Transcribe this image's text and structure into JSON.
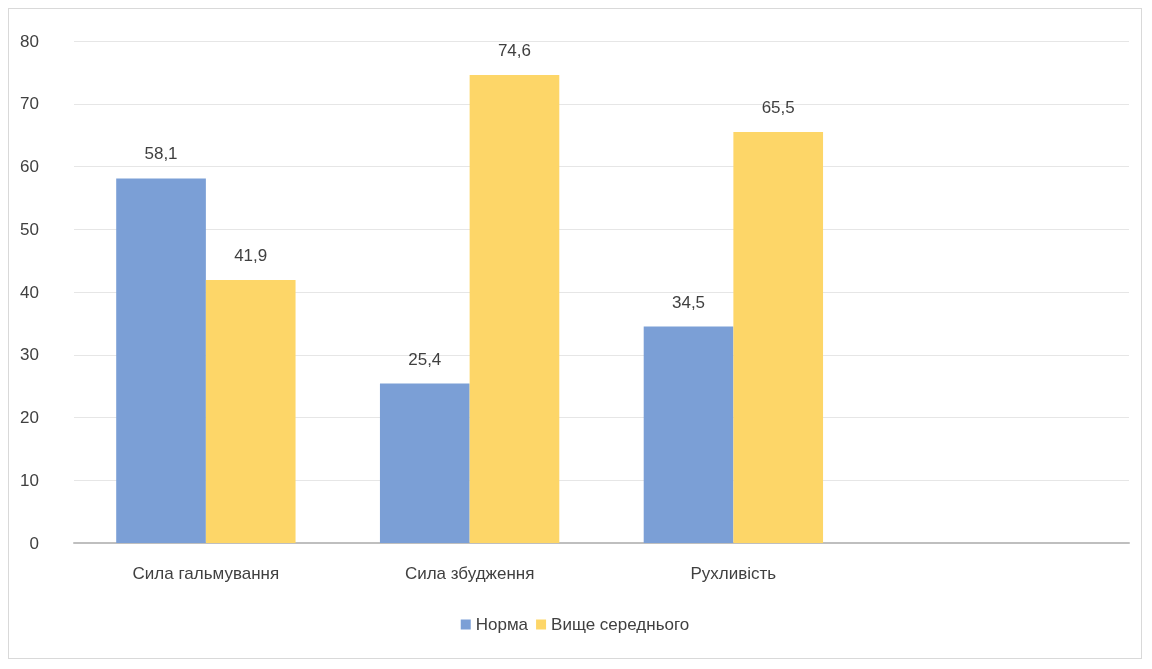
{
  "chart_data": {
    "type": "bar",
    "categories": [
      "Сила гальмування",
      "Сила збудження",
      "Рухливість",
      null
    ],
    "series": [
      {
        "name": "Норма",
        "color": "#7b9fd6",
        "values": [
          58.1,
          25.4,
          34.5,
          null
        ],
        "value_labels": [
          "58,1",
          "25,4",
          "34,5",
          null
        ]
      },
      {
        "name": "Вище середнього",
        "color": "#fdd668",
        "values": [
          41.9,
          74.6,
          65.5,
          null
        ],
        "value_labels": [
          "41,9",
          "74,6",
          "65,5",
          null
        ]
      }
    ],
    "ylim": [
      0,
      80
    ],
    "yticks": [
      0,
      10,
      20,
      30,
      40,
      50,
      60,
      70,
      80
    ],
    "grid": "y",
    "legend": "bottom"
  }
}
